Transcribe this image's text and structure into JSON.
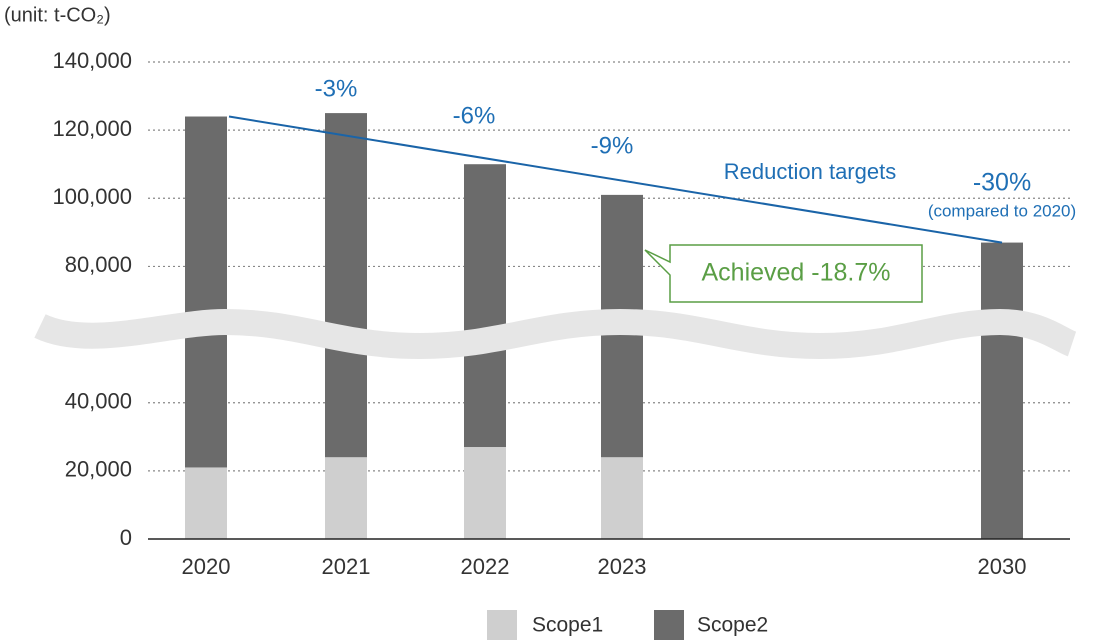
{
  "chart_data": {
    "type": "bar",
    "stacked": true,
    "unit_label": "(unit: t-CO₂)",
    "categories": [
      "2020",
      "2021",
      "2022",
      "2023",
      "2030"
    ],
    "series": [
      {
        "name": "Scope1",
        "color": "#cfcfcf",
        "values": [
          21000,
          24000,
          27000,
          24000,
          null
        ]
      },
      {
        "name": "Scope2",
        "color": "#6b6b6b",
        "values": [
          103000,
          101000,
          83000,
          77000,
          87000
        ]
      }
    ],
    "target": {
      "name": "Reduction targets",
      "color": "#1a64a8",
      "values": [
        124000,
        87000
      ]
    },
    "annotations": [
      "-3%",
      "-6%",
      "-9%",
      "-30%",
      "(compared to 2020)"
    ],
    "callout": "Achieved -18.7%",
    "ylim": [
      0,
      140000
    ],
    "yticks": [
      {
        "value": 0,
        "label": "0"
      },
      {
        "value": 20000,
        "label": "20,000"
      },
      {
        "value": 40000,
        "label": "40,000"
      },
      {
        "value": 80000,
        "label": "80,000"
      },
      {
        "value": 100000,
        "label": "100,000"
      },
      {
        "value": 120000,
        "label": "120,000"
      },
      {
        "value": 140000,
        "label": "140,000"
      }
    ],
    "grid": true
  }
}
